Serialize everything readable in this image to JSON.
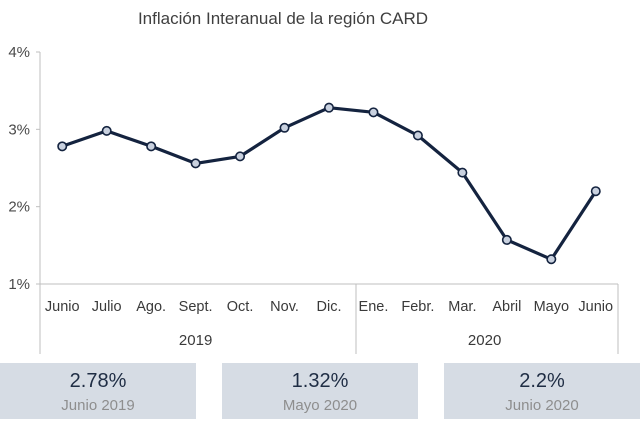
{
  "chart_data": {
    "type": "line",
    "title": "Inflación Interanual de la región CARD",
    "categories": [
      "Junio",
      "Julio",
      "Ago.",
      "Sept.",
      "Oct.",
      "Nov.",
      "Dic.",
      "Ene.",
      "Febr.",
      "Mar.",
      "Abril",
      "Mayo",
      "Junio"
    ],
    "groups": [
      {
        "label": "2019",
        "from": 0,
        "to": 6
      },
      {
        "label": "2020",
        "from": 7,
        "to": 12
      }
    ],
    "series": [
      {
        "values": [
          2.78,
          2.98,
          2.78,
          2.56,
          2.65,
          3.02,
          3.28,
          3.22,
          2.92,
          2.44,
          1.57,
          1.32,
          2.2
        ]
      }
    ],
    "ylim": [
      1,
      4
    ],
    "yticks": [
      "1%",
      "2%",
      "3%",
      "4%"
    ],
    "grid": false,
    "colors": {
      "line": "#14233f",
      "marker_fill": "#c9d1df"
    }
  },
  "cards": [
    {
      "value": "2.78%",
      "label": "Junio 2019"
    },
    {
      "value": "1.32%",
      "label": "Mayo 2020"
    },
    {
      "value": "2.2%",
      "label": "Junio 2020"
    }
  ]
}
